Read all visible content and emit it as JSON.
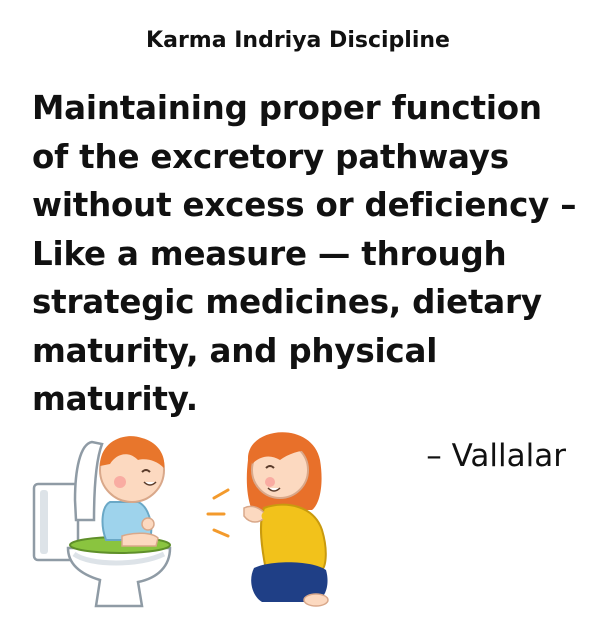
{
  "heading": "Karma Indriya Discipline",
  "quote": {
    "lines": [
      "Maintaining proper function",
      "of the excretory pathways",
      "without excess or deficiency –",
      "Like a measure — through",
      "strategic medicines, dietary",
      "maturity, and physical",
      "maturity."
    ]
  },
  "attribution": "– Vallalar",
  "illustration": {
    "icon": "child-on-toilet-with-clapping-mother-illustration",
    "colors": {
      "skin": "#fcd9c0",
      "child_hair": "#e8762c",
      "mother_hair": "#e8702a",
      "child_shirt": "#9ed3ec",
      "mother_shirt": "#f2c21b",
      "mother_pants": "#1f3f86",
      "toilet": "#ffffff",
      "toilet_outline": "#8f9ba5",
      "toilet_shadow": "#dde3e8",
      "potty_seat": "#8ac43f",
      "blush": "#f7a09a",
      "cheer_marks": "#f39a2c"
    }
  }
}
